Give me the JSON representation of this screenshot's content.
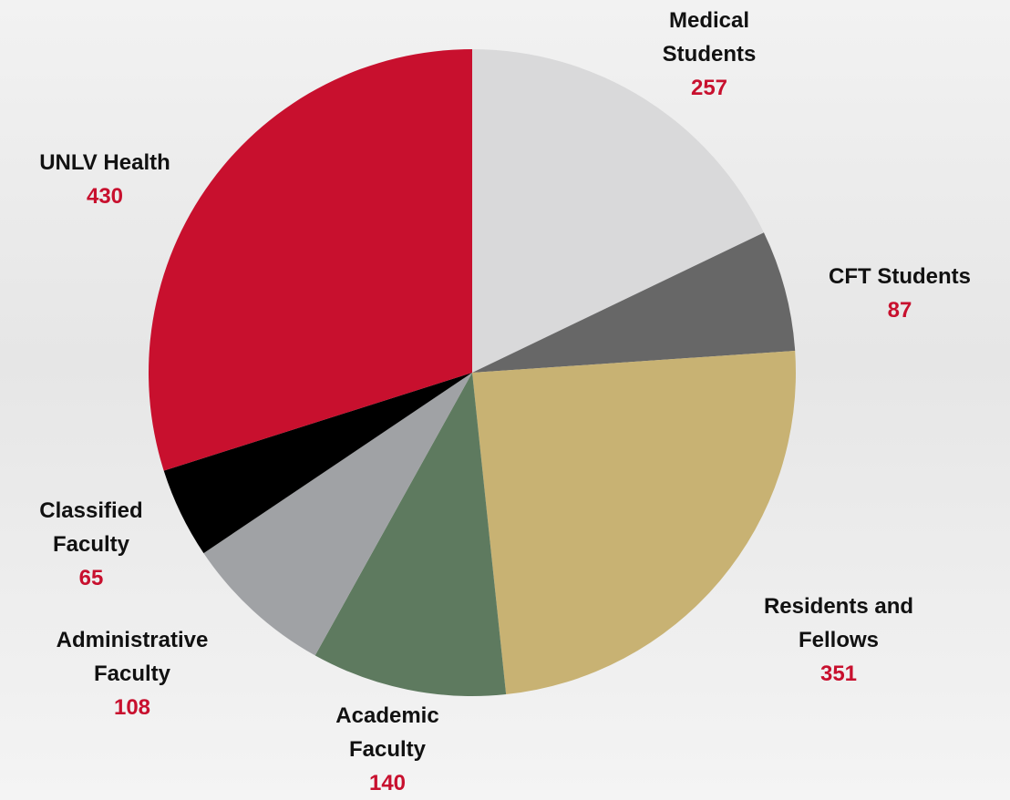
{
  "chart_data": {
    "type": "pie",
    "categories": [
      "Medical Students",
      "CFT Students",
      "Residents and Fellows",
      "Academic Faculty",
      "Administrative Faculty",
      "Classified Faculty",
      "UNLV Health"
    ],
    "values": [
      257,
      87,
      351,
      140,
      108,
      65,
      430
    ],
    "colors": [
      "#d9d9da",
      "#676767",
      "#c8b273",
      "#5e7a5f",
      "#a0a2a5",
      "#000000",
      "#c8102e"
    ]
  }
}
